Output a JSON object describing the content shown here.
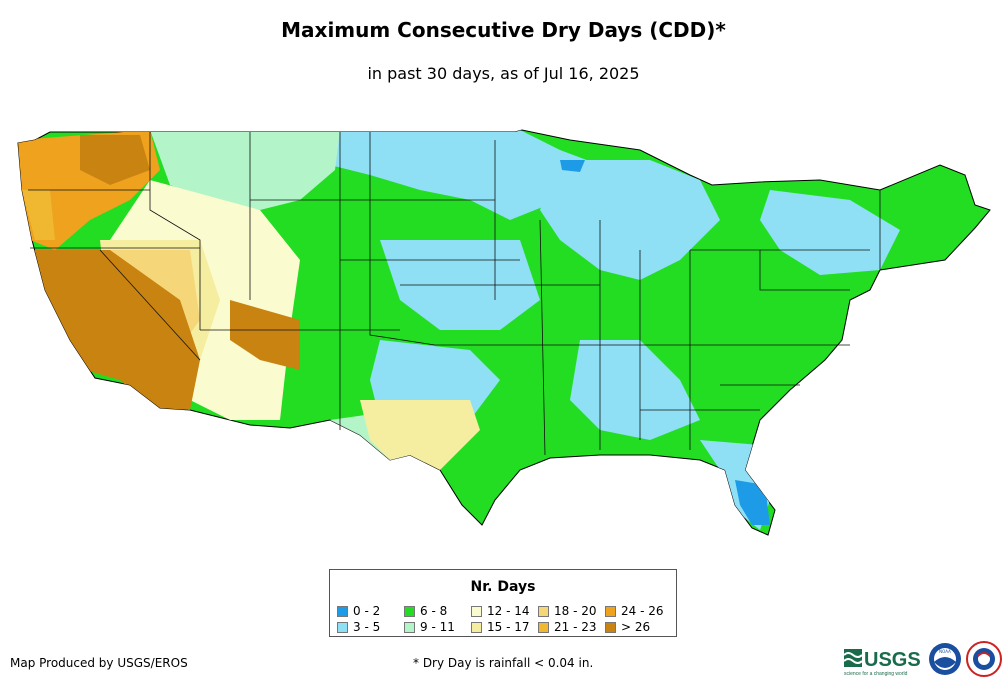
{
  "title": "Maximum Consecutive Dry Days (CDD)*",
  "subtitle": "in past 30 days, as of Jul 16, 2025",
  "legend": {
    "title": "Nr. Days",
    "items": [
      {
        "label": "0 - 2",
        "color": "#1e9be6"
      },
      {
        "label": "3 - 5",
        "color": "#8fe0f5"
      },
      {
        "label": "6 - 8",
        "color": "#22dd22"
      },
      {
        "label": "9 - 11",
        "color": "#b3f5c8"
      },
      {
        "label": "12 - 14",
        "color": "#fbfbd0"
      },
      {
        "label": "15 - 17",
        "color": "#f5eda0"
      },
      {
        "label": "18 - 20",
        "color": "#f5d77a"
      },
      {
        "label": "21 - 23",
        "color": "#f0b830"
      },
      {
        "label": "24 - 26",
        "color": "#eea21e"
      },
      {
        "label": "> 26",
        "color": "#c98310"
      }
    ]
  },
  "credit": "Map Produced by USGS/EROS",
  "footnote": "* Dry Day is rainfall < 0.04 in.",
  "logos": {
    "usgs": "USGS",
    "usgs_tagline": "science for a changing world",
    "noaa": "NOAA",
    "nws": "NATIONAL WEATHER SERVICE"
  }
}
